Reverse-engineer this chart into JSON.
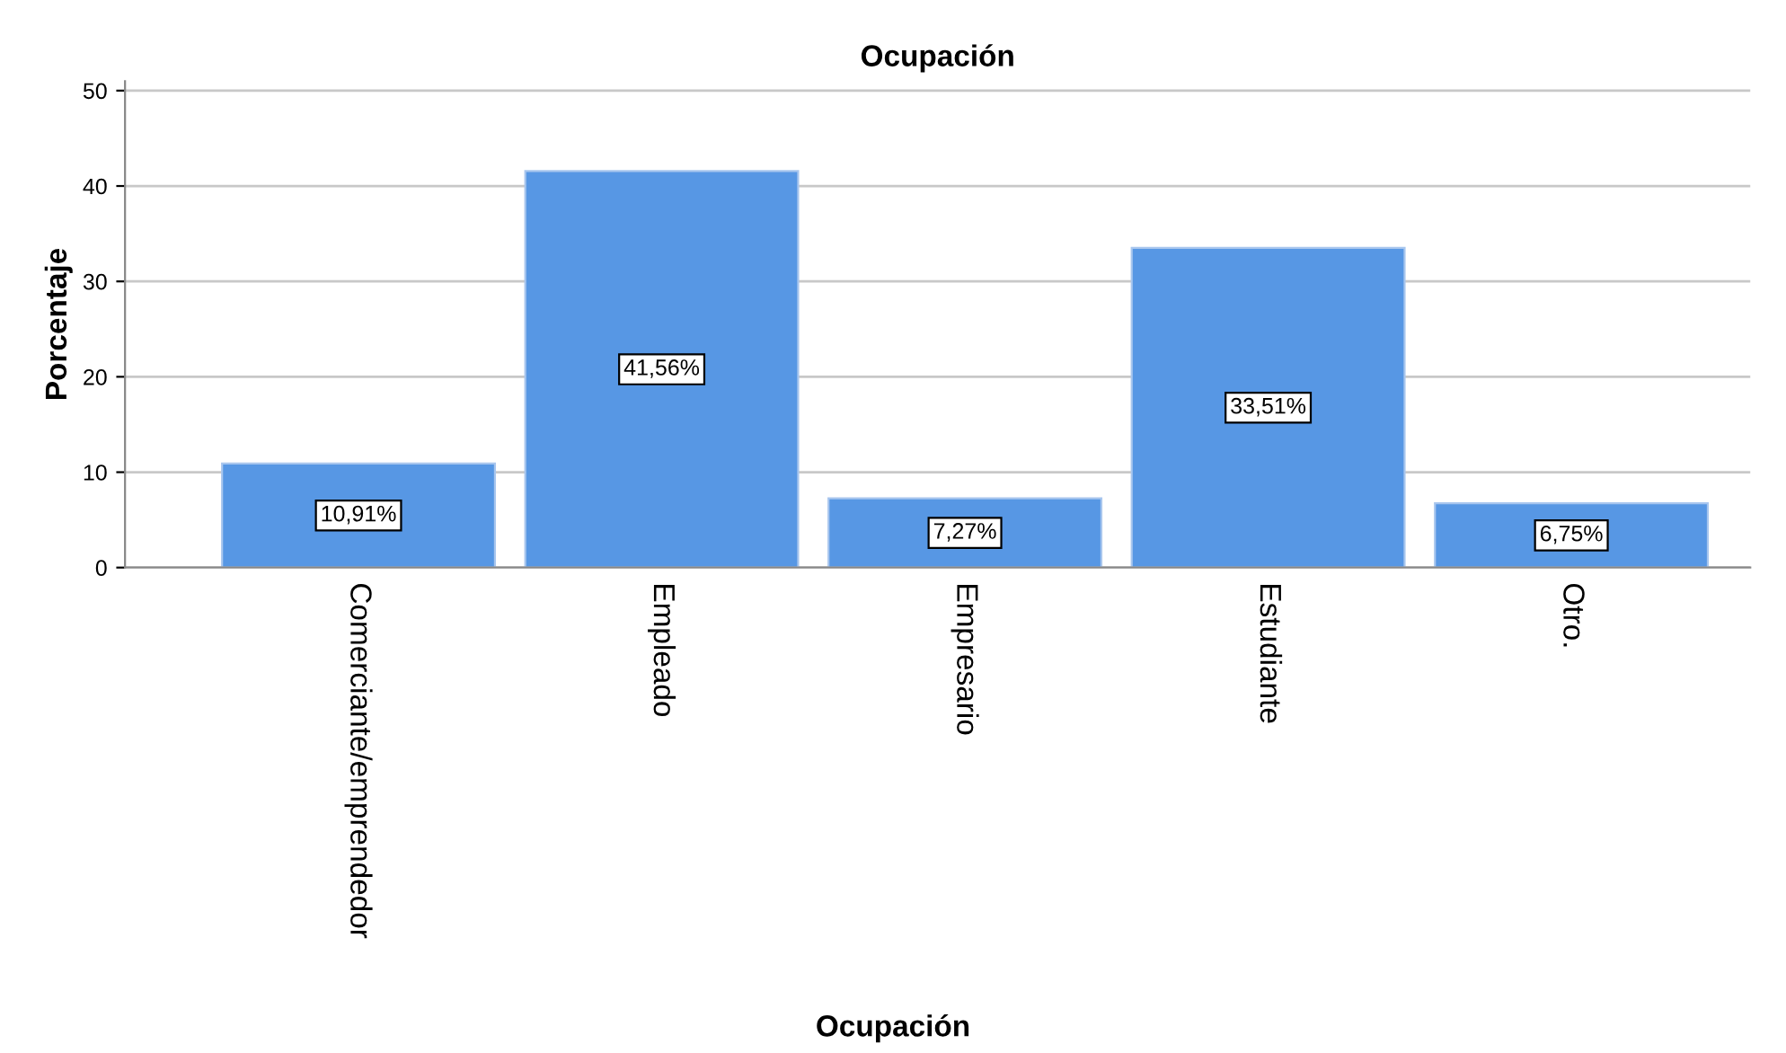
{
  "chart_data": {
    "type": "bar",
    "title": "Ocupación",
    "xlabel": "Ocupación",
    "ylabel": "Porcentaje",
    "categories": [
      "Comerciante/emprendedor",
      "Empleado",
      "Empresario",
      "Estudiante",
      "Otro."
    ],
    "values": [
      10.91,
      41.56,
      7.27,
      33.51,
      6.75
    ],
    "value_labels": [
      "10,91%",
      "41,56%",
      "7,27%",
      "33,51%",
      "6,75%"
    ],
    "color": "#5797e4",
    "ylim": [
      0,
      51
    ],
    "yticks": [
      0,
      10,
      20,
      30,
      40,
      50
    ],
    "grid": "y",
    "legend": false
  }
}
